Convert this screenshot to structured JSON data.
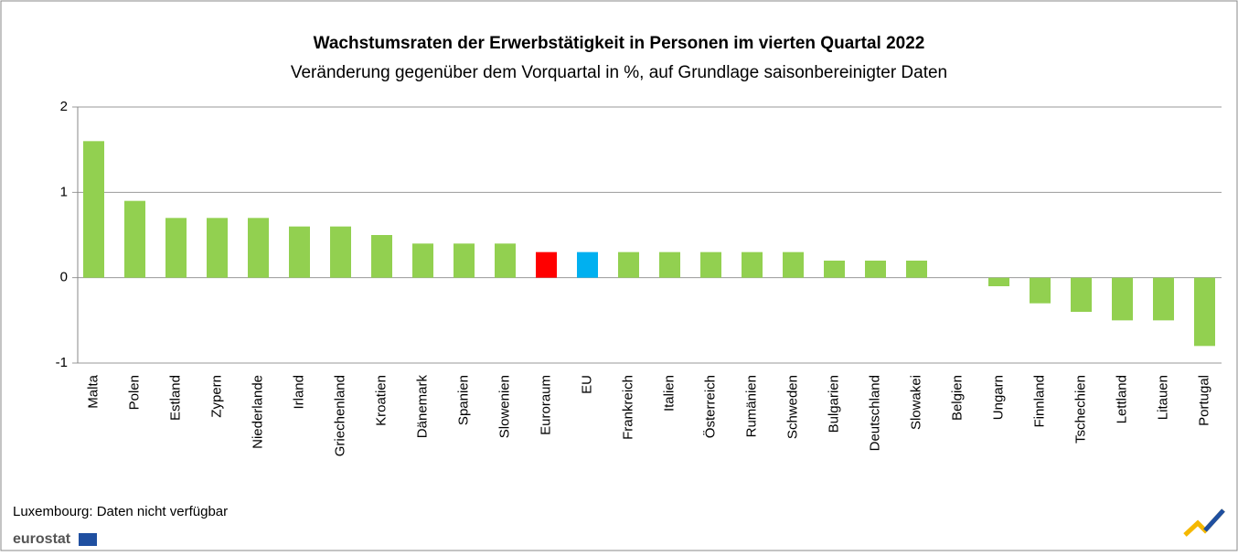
{
  "chart_data": {
    "type": "bar",
    "title": "Wachstumsraten der Erwerbstätigkeit in Personen im vierten Quartal 2022",
    "subtitle": "Veränderung gegenüber dem Vorquartal in %, auf Grundlage saisonbereinigter Daten",
    "categories": [
      "Malta",
      "Polen",
      "Estland",
      "Zypern",
      "Niederlande",
      "Irland",
      "Griechenland",
      "Kroatien",
      "Dänemark",
      "Spanien",
      "Slowenien",
      "Euroraum",
      "EU",
      "Frankreich",
      "Italien",
      "Österreich",
      "Rumänien",
      "Schweden",
      "Bulgarien",
      "Deutschland",
      "Slowakei",
      "Belgien",
      "Ungarn",
      "Finnland",
      "Tschechien",
      "Lettland",
      "Litauen",
      "Portugal"
    ],
    "values": [
      1.6,
      0.9,
      0.7,
      0.7,
      0.7,
      0.6,
      0.6,
      0.5,
      0.4,
      0.4,
      0.4,
      0.3,
      0.3,
      0.3,
      0.3,
      0.3,
      0.3,
      0.3,
      0.2,
      0.2,
      0.2,
      0,
      -0.1,
      -0.3,
      -0.4,
      -0.5,
      -0.5,
      -0.8
    ],
    "colors": [
      "#92d050",
      "#92d050",
      "#92d050",
      "#92d050",
      "#92d050",
      "#92d050",
      "#92d050",
      "#92d050",
      "#92d050",
      "#92d050",
      "#92d050",
      "#ff0000",
      "#00b0f0",
      "#92d050",
      "#92d050",
      "#92d050",
      "#92d050",
      "#92d050",
      "#92d050",
      "#92d050",
      "#92d050",
      "#92d050",
      "#92d050",
      "#92d050",
      "#92d050",
      "#92d050",
      "#92d050",
      "#92d050"
    ],
    "ylim": [
      -1,
      2
    ],
    "yticks": [
      -1,
      0,
      1,
      2
    ],
    "grid": true,
    "note": "Luxembourg: Daten nicht verfügbar",
    "source": "eurostat"
  }
}
